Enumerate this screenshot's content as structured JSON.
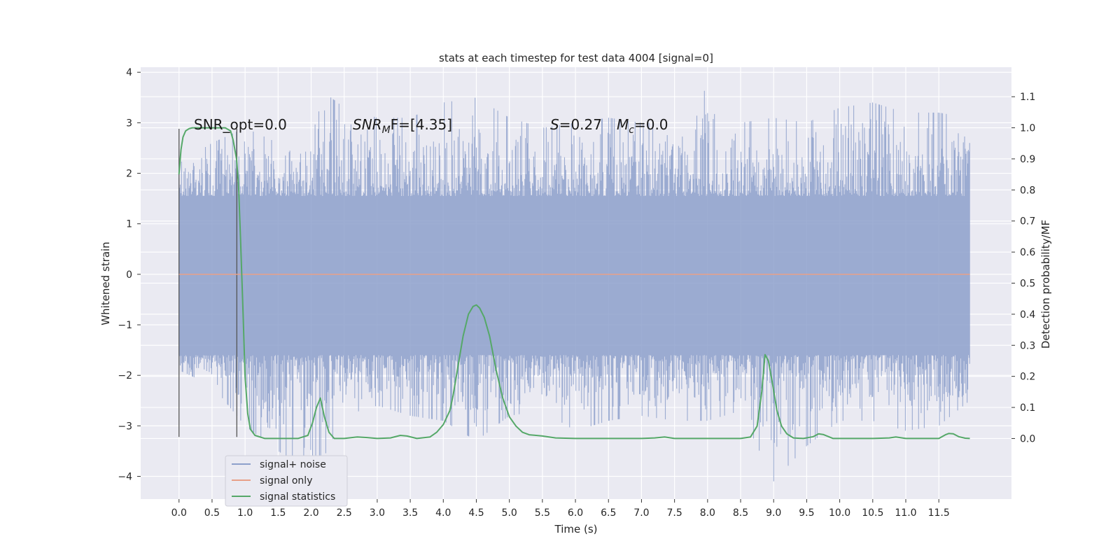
{
  "chart_data": {
    "type": "line",
    "title": "stats at each timestep for test data 4004 [signal=0]",
    "xlabel": "Time (s)",
    "ylabel": "Whitened strain",
    "y2label": "Detection probability/MF",
    "xlim": [
      -0.58,
      12.6
    ],
    "ylim": [
      -4.45,
      4.1
    ],
    "y2lim": [
      -0.195,
      1.195
    ],
    "x_ticks": [
      "0.0",
      "0.5",
      "1.0",
      "1.5",
      "2.0",
      "2.5",
      "3.0",
      "3.5",
      "4.0",
      "4.5",
      "5.0",
      "5.5",
      "6.0",
      "6.5",
      "7.0",
      "7.5",
      "8.0",
      "8.5",
      "9.0",
      "9.5",
      "10.0",
      "10.5",
      "11.0",
      "11.5"
    ],
    "y_ticks": [
      "4",
      "3",
      "2",
      "1",
      "0",
      "−1",
      "−2",
      "−3",
      "−4"
    ],
    "y2_ticks": [
      "1.1",
      "1.0",
      "0.9",
      "0.8",
      "0.7",
      "0.6",
      "0.5",
      "0.4",
      "0.3",
      "0.2",
      "0.1",
      "0.0"
    ],
    "grid": true,
    "legend": {
      "position": "lower-left",
      "entries": [
        "signal+ noise",
        "signal only",
        "signal statistics"
      ]
    },
    "annotations": {
      "snr_opt": "SNR_opt=0.0",
      "snr_mf_main": "SNR",
      "snr_mf_sub": "M",
      "snr_mf_tail": "F=[4.35]",
      "s_var": "S",
      "s_val": "=0.27",
      "mc_main": "M",
      "mc_sub": "c",
      "mc_val": "=0.0"
    },
    "markers_x": [
      0.0,
      0.875
    ],
    "markers_range": [
      -3.22,
      2.88
    ],
    "series": [
      {
        "name": "signal+ noise",
        "color": "#8da0cb",
        "axis": "left",
        "x_range": [
          0.0,
          11.97
        ],
        "envelope": [
          [
            0.0,
            -1.9,
            2.2
          ],
          [
            0.5,
            -2.2,
            2.6
          ],
          [
            1.0,
            -3.0,
            2.9
          ],
          [
            1.5,
            -3.5,
            2.6
          ],
          [
            2.0,
            -3.9,
            2.7
          ],
          [
            2.2,
            -3.6,
            3.6
          ],
          [
            2.5,
            -2.8,
            3.3
          ],
          [
            3.0,
            -2.6,
            3.1
          ],
          [
            3.5,
            -2.8,
            3.1
          ],
          [
            4.0,
            -2.9,
            3.4
          ],
          [
            4.5,
            -3.3,
            3.5
          ],
          [
            5.0,
            -2.8,
            3.1
          ],
          [
            5.5,
            -2.7,
            2.9
          ],
          [
            6.0,
            -3.1,
            3.0
          ],
          [
            6.5,
            -2.9,
            3.1
          ],
          [
            7.0,
            -2.8,
            3.0
          ],
          [
            7.5,
            -2.9,
            3.0
          ],
          [
            8.0,
            -2.9,
            3.7
          ],
          [
            8.5,
            -2.7,
            3.0
          ],
          [
            9.0,
            -4.1,
            3.1
          ],
          [
            9.5,
            -3.4,
            3.0
          ],
          [
            10.0,
            -2.9,
            3.3
          ],
          [
            10.5,
            -2.9,
            3.4
          ],
          [
            11.0,
            -3.1,
            3.2
          ],
          [
            11.5,
            -3.0,
            3.2
          ],
          [
            11.97,
            -2.5,
            3.1
          ]
        ]
      },
      {
        "name": "signal only",
        "color": "#e8a088",
        "axis": "left",
        "x": [
          0.0,
          11.97
        ],
        "y": [
          0.0,
          0.0
        ]
      },
      {
        "name": "signal statistics",
        "color": "#55a868",
        "axis": "right",
        "x": [
          0.0,
          0.03,
          0.06,
          0.1,
          0.15,
          0.2,
          0.3,
          0.4,
          0.5,
          0.6,
          0.7,
          0.78,
          0.82,
          0.87,
          0.9,
          0.93,
          0.97,
          1.0,
          1.04,
          1.08,
          1.15,
          1.3,
          1.5,
          1.8,
          1.95,
          2.02,
          2.08,
          2.14,
          2.2,
          2.27,
          2.35,
          2.5,
          2.7,
          2.85,
          3.0,
          3.2,
          3.35,
          3.45,
          3.6,
          3.8,
          3.9,
          4.0,
          4.1,
          4.15,
          4.22,
          4.3,
          4.38,
          4.45,
          4.5,
          4.55,
          4.62,
          4.7,
          4.8,
          4.9,
          5.0,
          5.1,
          5.2,
          5.3,
          5.5,
          5.7,
          6.0,
          6.5,
          7.0,
          7.2,
          7.35,
          7.5,
          8.0,
          8.5,
          8.65,
          8.75,
          8.82,
          8.87,
          8.92,
          8.98,
          9.05,
          9.12,
          9.2,
          9.3,
          9.45,
          9.6,
          9.68,
          9.75,
          9.9,
          10.0,
          10.5,
          10.75,
          10.85,
          11.0,
          11.3,
          11.5,
          11.6,
          11.65,
          11.72,
          11.8,
          11.9,
          11.97
        ],
        "y": [
          0.85,
          0.93,
          0.97,
          0.99,
          0.997,
          1.0,
          1.0,
          1.0,
          1.0,
          1.0,
          1.0,
          0.99,
          0.96,
          0.9,
          0.82,
          0.65,
          0.4,
          0.2,
          0.08,
          0.03,
          0.01,
          0.0,
          0.0,
          0.0,
          0.01,
          0.05,
          0.1,
          0.13,
          0.07,
          0.02,
          0.0,
          0.0,
          0.005,
          0.003,
          0.0,
          0.002,
          0.01,
          0.008,
          0.0,
          0.005,
          0.02,
          0.045,
          0.09,
          0.14,
          0.23,
          0.33,
          0.4,
          0.425,
          0.43,
          0.42,
          0.39,
          0.33,
          0.22,
          0.13,
          0.07,
          0.04,
          0.02,
          0.012,
          0.008,
          0.002,
          0.0,
          0.0,
          0.0,
          0.002,
          0.005,
          0.0,
          0.0,
          0.0,
          0.005,
          0.04,
          0.15,
          0.27,
          0.25,
          0.18,
          0.09,
          0.04,
          0.015,
          0.002,
          0.0,
          0.006,
          0.015,
          0.013,
          0.0,
          0.0,
          0.0,
          0.002,
          0.005,
          0.0,
          0.0,
          0.0,
          0.012,
          0.016,
          0.015,
          0.006,
          0.001,
          0.0
        ]
      }
    ]
  }
}
